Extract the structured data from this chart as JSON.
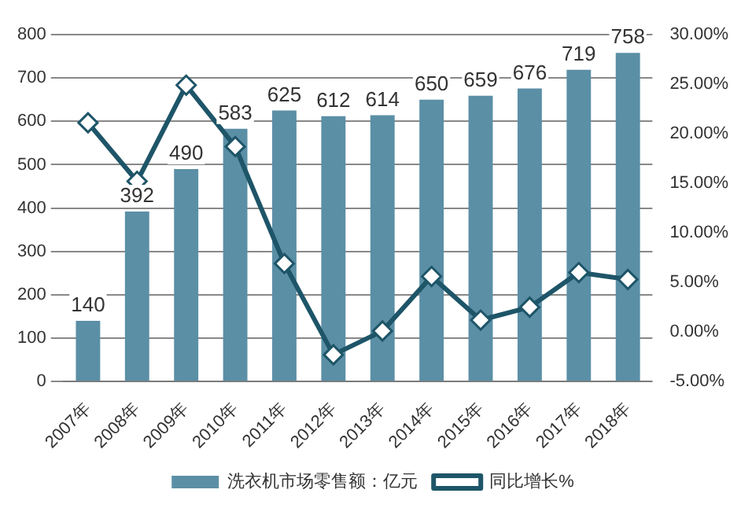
{
  "chart_data": {
    "type": "bar",
    "categories": [
      "2007年",
      "2008年",
      "2009年",
      "2010年",
      "2011年",
      "2012年",
      "2013年",
      "2014年",
      "2015年",
      "2016年",
      "2017年",
      "2018年"
    ],
    "series": [
      {
        "name": "洗衣机市场零售额：亿元",
        "color": "#5b8fa6",
        "values": [
          140,
          392,
          490,
          583,
          625,
          612,
          614,
          650,
          659,
          676,
          719,
          758
        ]
      },
      {
        "name": "同比增长%",
        "type": "line",
        "axis": "y2",
        "color": "#1e5568",
        "marker": "diamond",
        "values": [
          21.1,
          15.2,
          24.9,
          18.7,
          6.9,
          -2.3,
          0.1,
          5.6,
          1.2,
          2.5,
          6.0,
          5.3
        ]
      }
    ],
    "ylim": [
      0,
      800
    ],
    "yticks": [
      0,
      100,
      200,
      300,
      400,
      500,
      600,
      700,
      800
    ],
    "y2lim": [
      -5,
      30
    ],
    "y2ticks": [
      {
        "value": -5,
        "label": "-5.00%"
      },
      {
        "value": 0,
        "label": "0.00%"
      },
      {
        "value": 5,
        "label": "5.00%"
      },
      {
        "value": 10,
        "label": "10.00%"
      },
      {
        "value": 15,
        "label": "15.00%"
      },
      {
        "value": 20,
        "label": "20.00%"
      },
      {
        "value": 25,
        "label": "25.00%"
      },
      {
        "value": 30,
        "label": "30.00%"
      }
    ],
    "value_labels": [
      "140",
      "392",
      "490",
      "583",
      "625",
      "612",
      "614",
      "650",
      "659",
      "676",
      "719",
      "758"
    ],
    "grid": "y",
    "legend": "bottom"
  }
}
